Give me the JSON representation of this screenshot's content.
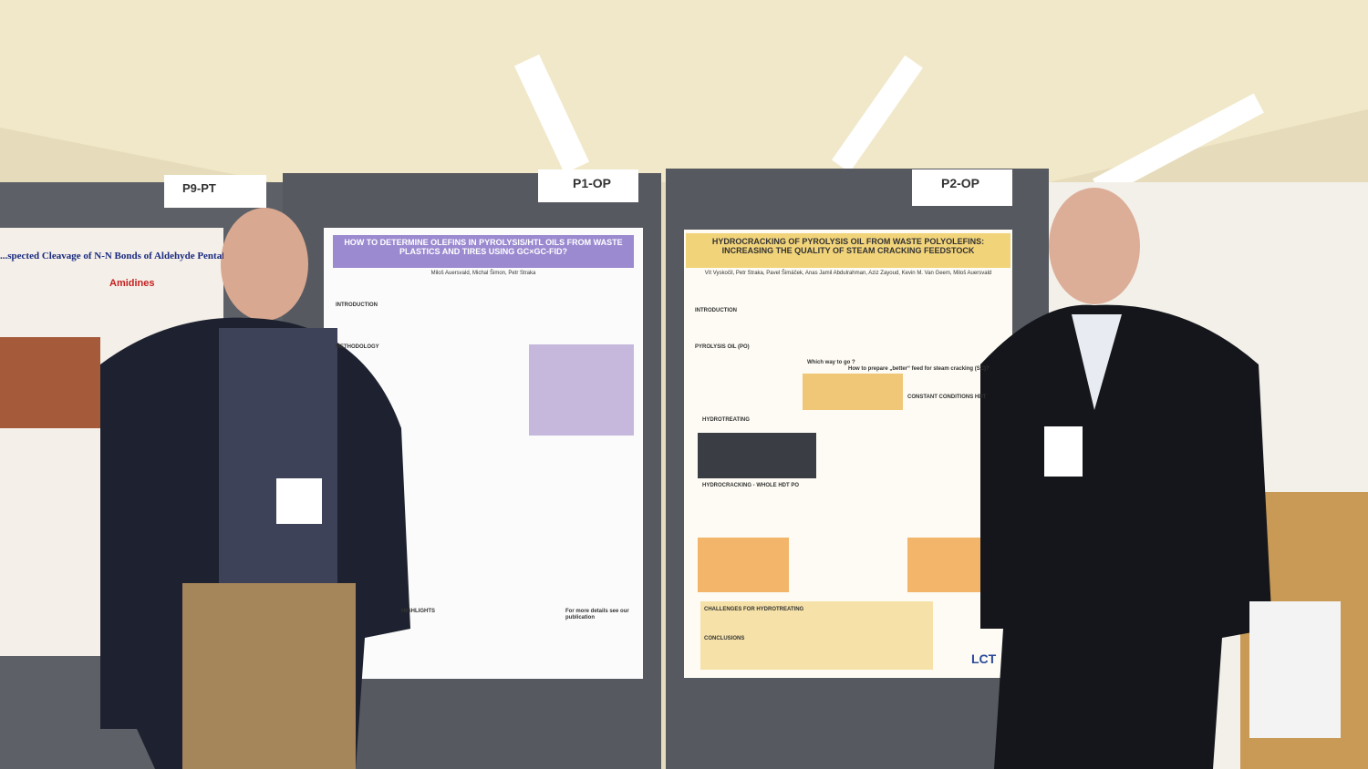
{
  "signs": [
    "P9-PT",
    "P1-OP",
    "P2-OP"
  ],
  "left_poster": {
    "title": "...spected Cleavage of N-N Bonds of Aldehyde Pentafluoroph",
    "subtitle": "Amidines"
  },
  "poster_1": {
    "title": "HOW TO DETERMINE OLEFINS IN PYROLYSIS/HTL OILS FROM WASTE PLASTICS AND TIRES USING GC×GC-FID?",
    "authors": "Miloš Auersvald, Michal Šimon, Petr Straka",
    "sections": [
      "INTRODUCTION",
      "METHODOLOGY",
      "HIGHLIGHTS",
      "For more details see our publication"
    ]
  },
  "poster_2": {
    "title": "HYDROCRACKING OF PYROLYSIS OIL FROM WASTE POLYOLEFINS: INCREASING THE QUALITY OF STEAM CRACKING FEEDSTOCK",
    "authors": "Vít Vyskočil, Petr Straka, Pavel Šimáček, Anas Jamil Abdulrahman, Aziz Zayoud, Kevin M. Van Geem, Miloš Auersvald",
    "sections": [
      "INTRODUCTION",
      "PYROLYSIS OIL (PO)",
      "How to prepare „better“ feed for steam cracking (SC)?",
      "Which way to go ?",
      "CONSTANT CONDITIONS HDT",
      "HYDROTREATING",
      "HYDROCRACKING - WHOLE HDT PO",
      "CHALLENGES FOR HYDROTREATING",
      "CONCLUSIONS"
    ],
    "logo": "LCT"
  }
}
